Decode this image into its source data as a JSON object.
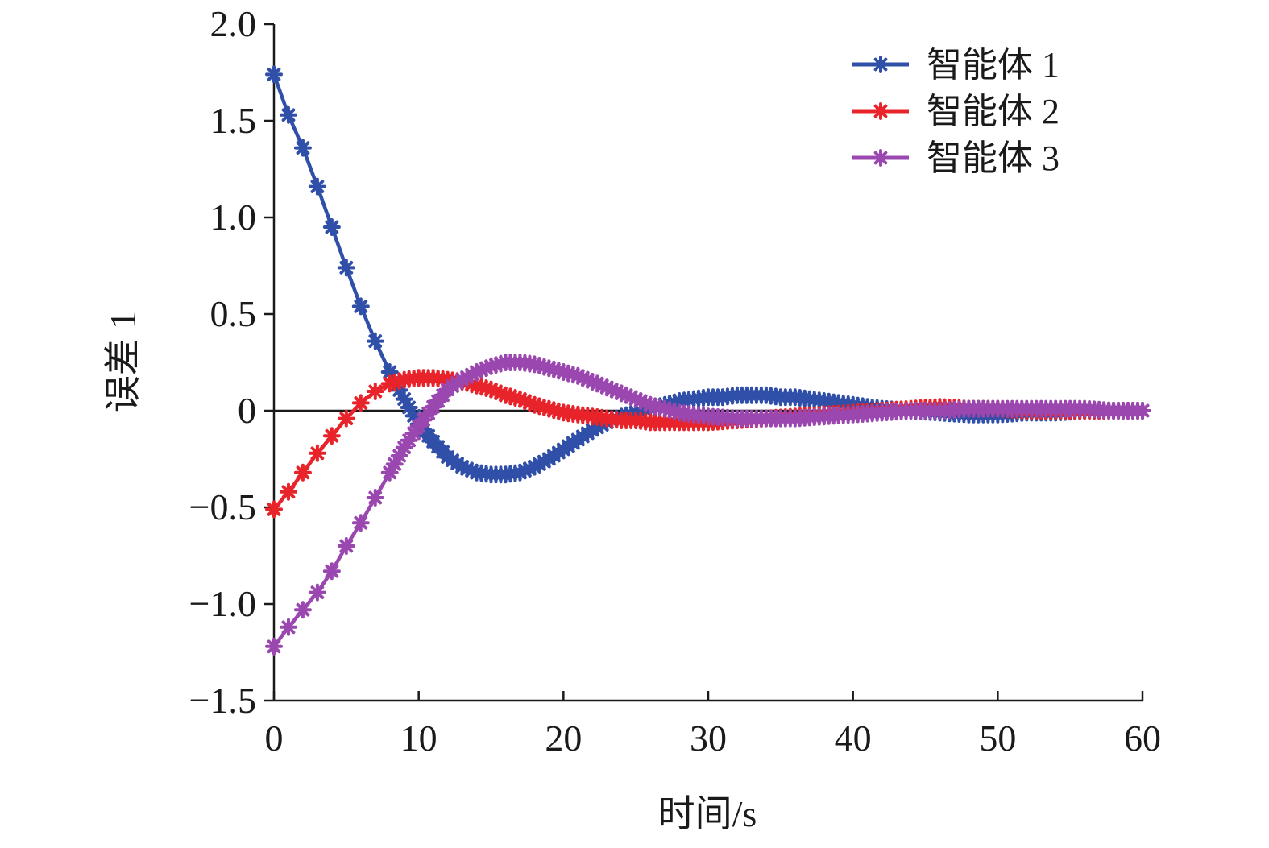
{
  "chart_data": {
    "type": "line",
    "title": "",
    "xlabel": "时间/s",
    "ylabel": "误差 1",
    "xlim": [
      0,
      60
    ],
    "ylim": [
      -1.5,
      2.0
    ],
    "x_ticks": [
      0,
      10,
      20,
      30,
      40,
      50,
      60
    ],
    "x_tick_labels": [
      "0",
      "10",
      "20",
      "30",
      "40",
      "50",
      "60"
    ],
    "y_ticks": [
      -1.5,
      -1.0,
      -0.5,
      0,
      0.5,
      1.0,
      1.5,
      2.0
    ],
    "y_tick_labels": [
      "−1.5",
      "−1.0",
      "−0.5",
      "0",
      "0.5",
      "1.0",
      "1.5",
      "2.0"
    ],
    "grid": false,
    "legend_position": "top-right",
    "series": [
      {
        "name": "智能体 1",
        "color": "#2f4fa8",
        "x": [
          0,
          1,
          2,
          3,
          4,
          5,
          6,
          7,
          8,
          9,
          10,
          11,
          12,
          13,
          14,
          15,
          16,
          17,
          18,
          19,
          20,
          21,
          22,
          23,
          24,
          25,
          26,
          27,
          28,
          29,
          30,
          31,
          32,
          33,
          34,
          35,
          36,
          37,
          38,
          39,
          40,
          42,
          44,
          46,
          48,
          50,
          52,
          54,
          56,
          58,
          60
        ],
        "y": [
          1.74,
          1.53,
          1.36,
          1.16,
          0.95,
          0.74,
          0.54,
          0.36,
          0.2,
          0.06,
          -0.07,
          -0.16,
          -0.24,
          -0.29,
          -0.32,
          -0.33,
          -0.33,
          -0.32,
          -0.29,
          -0.25,
          -0.2,
          -0.15,
          -0.1,
          -0.06,
          -0.03,
          -0.01,
          0.01,
          0.03,
          0.05,
          0.06,
          0.07,
          0.07,
          0.08,
          0.08,
          0.08,
          0.07,
          0.07,
          0.06,
          0.05,
          0.04,
          0.03,
          0.01,
          0.0,
          -0.01,
          -0.02,
          -0.02,
          -0.01,
          -0.01,
          0.0,
          0.0,
          0.0
        ]
      },
      {
        "name": "智能体 2",
        "color": "#e8232a",
        "x": [
          0,
          1,
          2,
          3,
          4,
          5,
          6,
          7,
          8,
          9,
          10,
          11,
          12,
          13,
          14,
          15,
          16,
          17,
          18,
          19,
          20,
          21,
          22,
          23,
          24,
          25,
          26,
          27,
          28,
          29,
          30,
          32,
          34,
          36,
          38,
          40,
          42,
          44,
          46,
          48,
          50,
          52,
          54,
          56,
          58,
          60
        ],
        "y": [
          -0.51,
          -0.42,
          -0.32,
          -0.22,
          -0.13,
          -0.04,
          0.04,
          0.1,
          0.14,
          0.16,
          0.17,
          0.17,
          0.16,
          0.15,
          0.13,
          0.11,
          0.08,
          0.06,
          0.03,
          0.01,
          -0.01,
          -0.02,
          -0.03,
          -0.04,
          -0.05,
          -0.05,
          -0.06,
          -0.06,
          -0.06,
          -0.06,
          -0.06,
          -0.05,
          -0.04,
          -0.03,
          -0.02,
          -0.01,
          0.0,
          0.01,
          0.02,
          0.01,
          0.01,
          0.0,
          0.0,
          0.0,
          0.0,
          0.0
        ]
      },
      {
        "name": "智能体 3",
        "color": "#9b47b0",
        "x": [
          0,
          1,
          2,
          3,
          4,
          5,
          6,
          7,
          8,
          9,
          10,
          11,
          12,
          13,
          14,
          15,
          16,
          17,
          18,
          19,
          20,
          21,
          22,
          23,
          24,
          25,
          26,
          27,
          28,
          29,
          30,
          32,
          34,
          36,
          38,
          40,
          42,
          44,
          46,
          48,
          50,
          52,
          54,
          56,
          58,
          60
        ],
        "y": [
          -1.22,
          -1.12,
          -1.03,
          -0.94,
          -0.83,
          -0.7,
          -0.58,
          -0.45,
          -0.32,
          -0.19,
          -0.08,
          0.02,
          0.11,
          0.16,
          0.2,
          0.23,
          0.25,
          0.25,
          0.24,
          0.22,
          0.2,
          0.18,
          0.15,
          0.12,
          0.09,
          0.06,
          0.03,
          0.01,
          -0.01,
          -0.02,
          -0.03,
          -0.04,
          -0.04,
          -0.04,
          -0.03,
          -0.02,
          -0.01,
          0.0,
          0.0,
          0.01,
          0.01,
          0.01,
          0.01,
          0.01,
          0.0,
          0.0
        ]
      }
    ]
  }
}
